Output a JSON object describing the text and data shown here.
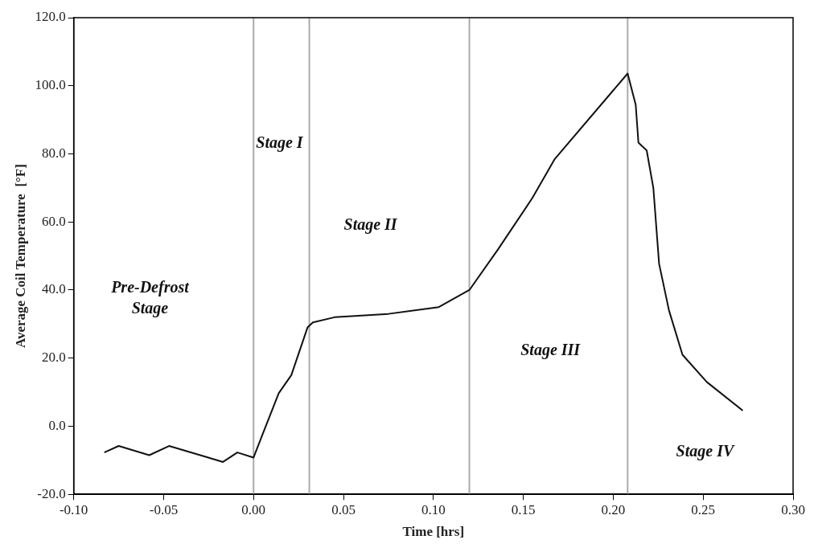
{
  "chart_data": {
    "type": "line",
    "xlabel": "Time [hrs]",
    "ylabel": "Average Coil Temperature  [°F]",
    "x": [
      -0.083,
      -0.075,
      -0.058,
      -0.047,
      -0.027,
      -0.017,
      -0.009,
      0.0,
      0.005,
      0.014,
      0.021,
      0.03,
      0.033,
      0.045,
      0.075,
      0.103,
      0.12,
      0.136,
      0.155,
      0.1675,
      0.208,
      0.2125,
      0.214,
      0.2186,
      0.2223,
      0.2255,
      0.231,
      0.2385,
      0.252,
      0.272
    ],
    "series": [
      {
        "color": "#111111",
        "values": [
          -7.7,
          -5.8,
          -8.5,
          -5.8,
          -8.9,
          -10.5,
          -7.7,
          -9.2,
          -2.4,
          9.7,
          15,
          29,
          30.5,
          32,
          33,
          35,
          40,
          52,
          67,
          78.5,
          103.6,
          94.4,
          83.3,
          81,
          70,
          47.7,
          34,
          21,
          13,
          4.6
        ]
      }
    ],
    "xlim": [
      -0.1,
      0.3
    ],
    "xticks": [
      {
        "value": -0.1,
        "label": "-0.10"
      },
      {
        "value": -0.05,
        "label": "-0.05"
      },
      {
        "value": 0,
        "label": "0.00"
      },
      {
        "value": 0.05,
        "label": "0.05"
      },
      {
        "value": 0.1,
        "label": "0.10"
      },
      {
        "value": 0.15,
        "label": "0.15"
      },
      {
        "value": 0.2,
        "label": "0.20"
      },
      {
        "value": 0.25,
        "label": "0.25"
      },
      {
        "value": 0.3,
        "label": "0.30"
      }
    ],
    "ylim": [
      -20,
      120
    ],
    "yticks": [
      {
        "value": -20,
        "label": "-20.0"
      },
      {
        "value": 0,
        "label": "0.0"
      },
      {
        "value": 20,
        "label": "20.0"
      },
      {
        "value": 40,
        "label": "40.0"
      },
      {
        "value": 60,
        "label": "60.0"
      },
      {
        "value": 80,
        "label": "80.0"
      },
      {
        "value": 100,
        "label": "100.0"
      },
      {
        "value": 120,
        "label": "120.0"
      }
    ],
    "ref_lines": [
      {
        "axis": "x",
        "value": 0,
        "color": "#aaaaaa"
      },
      {
        "axis": "x",
        "value": 0.031,
        "color": "#aaaaaa"
      },
      {
        "axis": "x",
        "value": 0.12,
        "color": "#aaaaaa"
      },
      {
        "axis": "x",
        "value": 0.208,
        "color": "#aaaaaa"
      }
    ],
    "annotations": [
      "Pre-Defrost Stage",
      "Stage I",
      "Stage II",
      "Stage III",
      "Stage IV"
    ],
    "grid": false,
    "legend": false,
    "marker": "none",
    "line_style": "solid"
  }
}
